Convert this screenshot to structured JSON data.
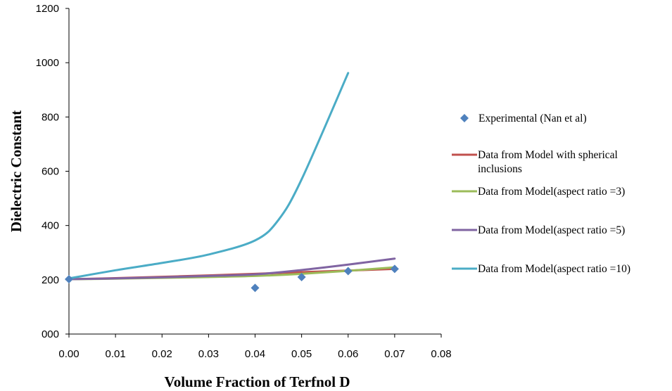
{
  "chart_data": {
    "type": "scatter",
    "title": "",
    "xlabel": "Volume Fraction of Terfnol D",
    "ylabel": "Dielectric Constant",
    "xlim": [
      0,
      0.08
    ],
    "ylim": [
      0,
      1200
    ],
    "x_ticks": [
      "0.00",
      "0.01",
      "0.02",
      "0.03",
      "0.04",
      "0.05",
      "0.06",
      "0.07",
      "0.08"
    ],
    "y_ticks": [
      "000",
      "200",
      "400",
      "600",
      "800",
      "1000",
      "1200"
    ],
    "grid": false,
    "legend_position": "right",
    "series": [
      {
        "name": "Experimental (Nan et al)",
        "name_lines": [
          "Experimental (Nan et al)"
        ],
        "kind": "marker",
        "color": "#4f81bd",
        "x": [
          0.0,
          0.04,
          0.05,
          0.06,
          0.07
        ],
        "y": [
          202,
          170,
          210,
          232,
          240
        ]
      },
      {
        "name": "Data from Model with spherical inclusions",
        "name_lines": [
          "Data from Model with spherical",
          "inclusions"
        ],
        "kind": "line",
        "color": "#c0504d",
        "x": [
          0.0,
          0.01,
          0.02,
          0.03,
          0.04,
          0.05,
          0.06,
          0.07
        ],
        "y": [
          202,
          206,
          211,
          216,
          222,
          228,
          234,
          240
        ]
      },
      {
        "name": "Data from Model(aspect ratio =3)",
        "name_lines": [
          "Data from Model(aspect ratio =3)"
        ],
        "kind": "line",
        "color": "#9bbb59",
        "x": [
          0.0,
          0.01,
          0.02,
          0.03,
          0.04,
          0.05,
          0.06,
          0.07
        ],
        "y": [
          202,
          204,
          207,
          210,
          214,
          222,
          233,
          246
        ]
      },
      {
        "name": "Data from Model(aspect ratio =5)",
        "name_lines": [
          "Data from Model(aspect ratio =5)"
        ],
        "kind": "line",
        "color": "#8064a2",
        "x": [
          0.0,
          0.01,
          0.02,
          0.03,
          0.04,
          0.05,
          0.06,
          0.07
        ],
        "y": [
          202,
          205,
          209,
          214,
          220,
          236,
          256,
          278
        ]
      },
      {
        "name": "Data from Model(aspect ratio =10)",
        "name_lines": [
          "Data from Model(aspect ratio =10)"
        ],
        "kind": "line",
        "color": "#4bacc6",
        "x": [
          0.0,
          0.01,
          0.02,
          0.03,
          0.04,
          0.045,
          0.05,
          0.06
        ],
        "y": [
          205,
          235,
          262,
          293,
          345,
          420,
          570,
          962
        ]
      }
    ]
  }
}
